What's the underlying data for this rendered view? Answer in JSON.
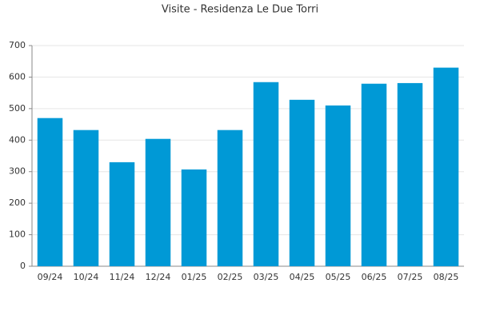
{
  "chart_data": {
    "type": "bar",
    "title": "Visite - Residenza Le Due Torri",
    "categories": [
      "09/24",
      "10/24",
      "11/24",
      "12/24",
      "01/25",
      "02/25",
      "03/25",
      "04/25",
      "05/25",
      "06/25",
      "07/25",
      "08/25"
    ],
    "values": [
      470,
      432,
      330,
      404,
      307,
      432,
      584,
      528,
      510,
      579,
      581,
      630
    ],
    "color": "#0099d6",
    "ylim": [
      0,
      700
    ],
    "yticks": [
      0,
      100,
      200,
      300,
      400,
      500,
      600,
      700
    ],
    "grid": true
  }
}
